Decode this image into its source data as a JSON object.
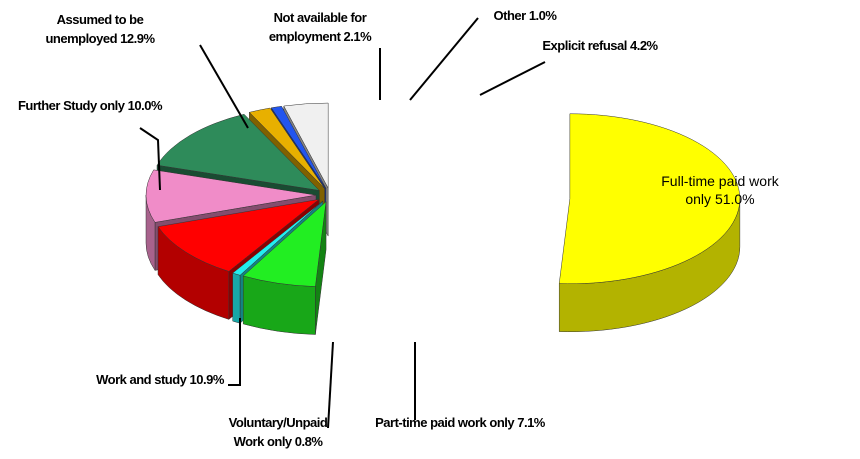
{
  "chart_data": {
    "type": "pie",
    "exploded": true,
    "three_d": true,
    "categories": [
      "Full-time paid work only",
      "Part-time paid work only",
      "Voluntary/Unpaid Work only",
      "Work and study",
      "Further Study only",
      "Assumed to be unemployed",
      "Not available for employment",
      "Other",
      "Explicit refusal"
    ],
    "values": [
      51.0,
      7.1,
      0.8,
      10.9,
      10.0,
      12.9,
      2.1,
      1.0,
      4.2
    ],
    "value_labels": [
      "51.0%",
      "7.1%",
      "0.8%",
      "10.9%",
      "10.0%",
      "12.9%",
      "2.1%",
      "1.0%",
      "4.2%"
    ],
    "colors": [
      "#ffff00",
      "#22ee22",
      "#22eeee",
      "#ff0000",
      "#f08cc8",
      "#2e8b5a",
      "#e8b000",
      "#2255ee",
      "#f0f0f0"
    ]
  }
}
